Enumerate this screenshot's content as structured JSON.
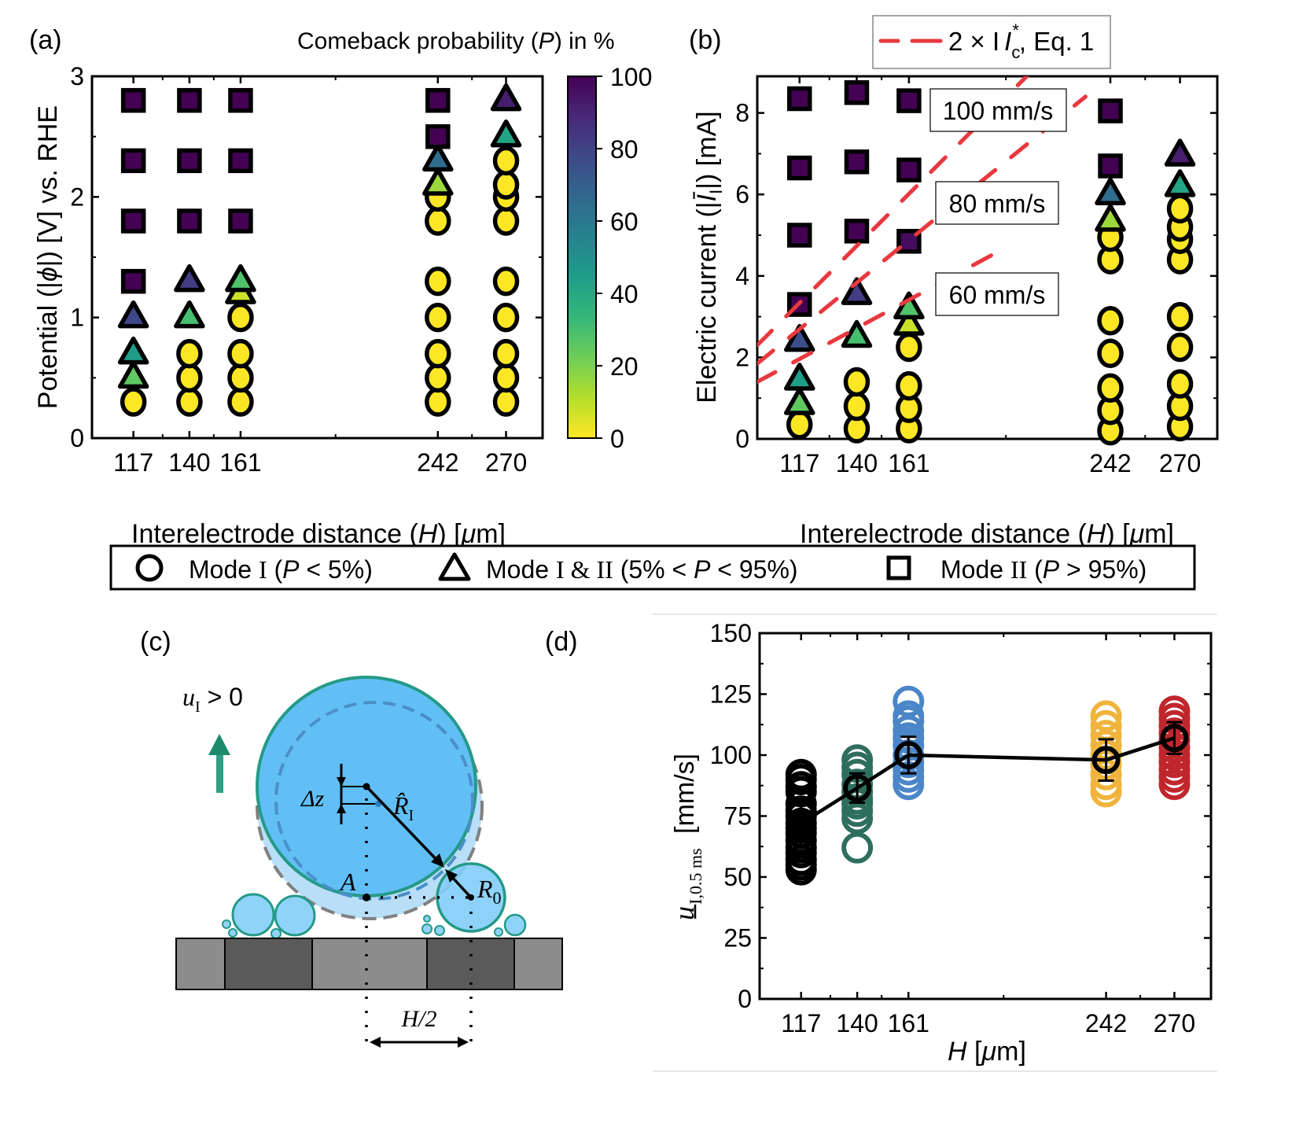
{
  "figure": {
    "panel_labels": {
      "a": "(a)",
      "b": "(b)",
      "c": "(c)",
      "d": "(d)"
    },
    "colors": {
      "viridis": [
        "#fde725",
        "#b5de2b",
        "#6ece58",
        "#35b779",
        "#1f9e89",
        "#26828e",
        "#31688e",
        "#3e4989",
        "#482878",
        "#440154"
      ],
      "marker_edge": "#000000",
      "dashed_line": "#e8393f"
    }
  },
  "chart_data": [
    {
      "id": "a",
      "type": "scatter",
      "title": "",
      "colorbar": {
        "label": "Comeback probability (P) in %",
        "range": [
          0,
          100
        ],
        "ticks": [
          "0",
          "20",
          "40",
          "60",
          "80",
          "100"
        ],
        "colormap": "viridis"
      },
      "xlabel": "Interelectrode distance (H) [μm]",
      "ylabel": "Potential (|φ|) [V] vs. RHE",
      "xlim": [
        100,
        285
      ],
      "ylim": [
        0,
        3
      ],
      "xticks": [
        117,
        140,
        161,
        242,
        270
      ],
      "xtick_labels": [
        "117",
        "140",
        "161",
        "242",
        "270"
      ],
      "yticks": [
        0,
        1,
        2,
        3
      ],
      "ytick_labels": [
        "0",
        "1",
        "2",
        "3"
      ],
      "points": [
        {
          "x": 117,
          "y": 2.8,
          "marker": "square",
          "P": 100
        },
        {
          "x": 117,
          "y": 2.3,
          "marker": "square",
          "P": 100
        },
        {
          "x": 117,
          "y": 1.8,
          "marker": "square",
          "P": 100
        },
        {
          "x": 117,
          "y": 1.3,
          "marker": "square",
          "P": 100
        },
        {
          "x": 117,
          "y": 1.0,
          "marker": "triangle",
          "P": 78
        },
        {
          "x": 117,
          "y": 0.7,
          "marker": "triangle",
          "P": 45
        },
        {
          "x": 117,
          "y": 0.5,
          "marker": "triangle",
          "P": 25
        },
        {
          "x": 117,
          "y": 0.3,
          "marker": "circle",
          "P": 0
        },
        {
          "x": 140,
          "y": 2.8,
          "marker": "square",
          "P": 100
        },
        {
          "x": 140,
          "y": 2.3,
          "marker": "square",
          "P": 100
        },
        {
          "x": 140,
          "y": 1.8,
          "marker": "square",
          "P": 100
        },
        {
          "x": 140,
          "y": 1.3,
          "marker": "triangle",
          "P": 82
        },
        {
          "x": 140,
          "y": 1.0,
          "marker": "triangle",
          "P": 30
        },
        {
          "x": 140,
          "y": 0.7,
          "marker": "circle",
          "P": 0
        },
        {
          "x": 140,
          "y": 0.5,
          "marker": "circle",
          "P": 0
        },
        {
          "x": 140,
          "y": 0.3,
          "marker": "circle",
          "P": 0
        },
        {
          "x": 161,
          "y": 2.8,
          "marker": "square",
          "P": 100
        },
        {
          "x": 161,
          "y": 2.3,
          "marker": "square",
          "P": 100
        },
        {
          "x": 161,
          "y": 1.8,
          "marker": "square",
          "P": 100
        },
        {
          "x": 161,
          "y": 1.3,
          "marker": "triangle",
          "P": 28
        },
        {
          "x": 161,
          "y": 1.2,
          "marker": "triangle",
          "P": 8
        },
        {
          "x": 161,
          "y": 1.0,
          "marker": "circle",
          "P": 0
        },
        {
          "x": 161,
          "y": 0.7,
          "marker": "circle",
          "P": 0
        },
        {
          "x": 161,
          "y": 0.5,
          "marker": "circle",
          "P": 0
        },
        {
          "x": 161,
          "y": 0.3,
          "marker": "circle",
          "P": 0
        },
        {
          "x": 242,
          "y": 2.8,
          "marker": "square",
          "P": 100
        },
        {
          "x": 242,
          "y": 2.5,
          "marker": "square",
          "P": 100
        },
        {
          "x": 242,
          "y": 2.3,
          "marker": "triangle",
          "P": 65
        },
        {
          "x": 242,
          "y": 2.1,
          "marker": "triangle",
          "P": 15
        },
        {
          "x": 242,
          "y": 2.0,
          "marker": "circle",
          "P": 0
        },
        {
          "x": 242,
          "y": 1.8,
          "marker": "circle",
          "P": 0
        },
        {
          "x": 242,
          "y": 1.3,
          "marker": "circle",
          "P": 0
        },
        {
          "x": 242,
          "y": 1.0,
          "marker": "circle",
          "P": 0
        },
        {
          "x": 242,
          "y": 0.7,
          "marker": "circle",
          "P": 0
        },
        {
          "x": 242,
          "y": 0.5,
          "marker": "circle",
          "P": 0
        },
        {
          "x": 242,
          "y": 0.3,
          "marker": "circle",
          "P": 0
        },
        {
          "x": 270,
          "y": 2.8,
          "marker": "triangle",
          "P": 92
        },
        {
          "x": 270,
          "y": 2.5,
          "marker": "triangle",
          "P": 42
        },
        {
          "x": 270,
          "y": 2.3,
          "marker": "circle",
          "P": 0
        },
        {
          "x": 270,
          "y": 2.1,
          "marker": "circle",
          "P": 0
        },
        {
          "x": 270,
          "y": 2.0,
          "marker": "circle",
          "P": 0
        },
        {
          "x": 270,
          "y": 1.8,
          "marker": "circle",
          "P": 0
        },
        {
          "x": 270,
          "y": 1.3,
          "marker": "circle",
          "P": 0
        },
        {
          "x": 270,
          "y": 1.0,
          "marker": "circle",
          "P": 0
        },
        {
          "x": 270,
          "y": 0.7,
          "marker": "circle",
          "P": 0
        },
        {
          "x": 270,
          "y": 0.5,
          "marker": "circle",
          "P": 0
        },
        {
          "x": 270,
          "y": 0.3,
          "marker": "circle",
          "P": 0
        }
      ]
    },
    {
      "id": "b",
      "type": "scatter",
      "xlabel": "Interelectrode distance (H) [μm]",
      "ylabel": "Electric current (|Ī_I|) [mA]",
      "xlim": [
        100,
        285
      ],
      "ylim": [
        0,
        8.9
      ],
      "xticks": [
        117,
        140,
        161,
        242,
        270
      ],
      "xtick_labels": [
        "117",
        "140",
        "161",
        "242",
        "270"
      ],
      "yticks": [
        0,
        2,
        4,
        6,
        8
      ],
      "ytick_labels": [
        "0",
        "2",
        "4",
        "6",
        "8"
      ],
      "legend": {
        "label_prefix": "2 × I",
        "label_sub": "c",
        "label_sup": "*",
        "label_suffix": ", Eq. 1",
        "position": "top-center"
      },
      "reference_lines": [
        {
          "label": "100 mm/s",
          "x": [
            100,
            210
          ],
          "y": [
            2.3,
            9.0
          ]
        },
        {
          "label": "80 mm/s",
          "x": [
            100,
            232
          ],
          "y": [
            1.85,
            8.4
          ]
        },
        {
          "label": "60 mm/s",
          "x": [
            100,
            197
          ],
          "y": [
            1.4,
            4.6
          ]
        }
      ],
      "annotations": [
        "100 mm/s",
        "80 mm/s",
        "60 mm/s"
      ],
      "points": [
        {
          "x": 117,
          "y": 8.35,
          "marker": "square",
          "P": 100
        },
        {
          "x": 117,
          "y": 6.65,
          "marker": "square",
          "P": 100
        },
        {
          "x": 117,
          "y": 5.0,
          "marker": "square",
          "P": 100
        },
        {
          "x": 117,
          "y": 3.3,
          "marker": "square",
          "P": 100
        },
        {
          "x": 117,
          "y": 2.4,
          "marker": "triangle",
          "P": 76
        },
        {
          "x": 117,
          "y": 1.45,
          "marker": "triangle",
          "P": 45
        },
        {
          "x": 117,
          "y": 0.85,
          "marker": "triangle",
          "P": 25
        },
        {
          "x": 117,
          "y": 0.35,
          "marker": "circle",
          "P": 0
        },
        {
          "x": 140,
          "y": 8.5,
          "marker": "square",
          "P": 100
        },
        {
          "x": 140,
          "y": 6.8,
          "marker": "square",
          "P": 100
        },
        {
          "x": 140,
          "y": 5.1,
          "marker": "square",
          "P": 100
        },
        {
          "x": 140,
          "y": 3.55,
          "marker": "triangle",
          "P": 82
        },
        {
          "x": 140,
          "y": 2.5,
          "marker": "triangle",
          "P": 30
        },
        {
          "x": 140,
          "y": 1.4,
          "marker": "circle",
          "P": 0
        },
        {
          "x": 140,
          "y": 0.8,
          "marker": "circle",
          "P": 0
        },
        {
          "x": 140,
          "y": 0.25,
          "marker": "circle",
          "P": 0
        },
        {
          "x": 161,
          "y": 8.3,
          "marker": "square",
          "P": 100
        },
        {
          "x": 161,
          "y": 6.6,
          "marker": "square",
          "P": 100
        },
        {
          "x": 161,
          "y": 4.85,
          "marker": "square",
          "P": 97
        },
        {
          "x": 161,
          "y": 3.2,
          "marker": "triangle",
          "P": 28
        },
        {
          "x": 161,
          "y": 2.8,
          "marker": "triangle",
          "P": 8
        },
        {
          "x": 161,
          "y": 2.25,
          "marker": "circle",
          "P": 0
        },
        {
          "x": 161,
          "y": 1.3,
          "marker": "circle",
          "P": 0
        },
        {
          "x": 161,
          "y": 0.75,
          "marker": "circle",
          "P": 0
        },
        {
          "x": 161,
          "y": 0.25,
          "marker": "circle",
          "P": 0
        },
        {
          "x": 242,
          "y": 8.05,
          "marker": "square",
          "P": 100
        },
        {
          "x": 242,
          "y": 6.7,
          "marker": "square",
          "P": 100
        },
        {
          "x": 242,
          "y": 6.0,
          "marker": "triangle",
          "P": 65
        },
        {
          "x": 242,
          "y": 5.35,
          "marker": "triangle",
          "P": 15
        },
        {
          "x": 242,
          "y": 4.95,
          "marker": "circle",
          "P": 0
        },
        {
          "x": 242,
          "y": 4.4,
          "marker": "circle",
          "P": 0
        },
        {
          "x": 242,
          "y": 2.9,
          "marker": "circle",
          "P": 0
        },
        {
          "x": 242,
          "y": 2.1,
          "marker": "circle",
          "P": 0
        },
        {
          "x": 242,
          "y": 1.25,
          "marker": "circle",
          "P": 0
        },
        {
          "x": 242,
          "y": 0.7,
          "marker": "circle",
          "P": 0
        },
        {
          "x": 242,
          "y": 0.2,
          "marker": "circle",
          "P": 0
        },
        {
          "x": 270,
          "y": 6.95,
          "marker": "triangle",
          "P": 92
        },
        {
          "x": 270,
          "y": 6.2,
          "marker": "triangle",
          "P": 42
        },
        {
          "x": 270,
          "y": 5.65,
          "marker": "circle",
          "P": 0
        },
        {
          "x": 270,
          "y": 5.2,
          "marker": "circle",
          "P": 0
        },
        {
          "x": 270,
          "y": 4.9,
          "marker": "circle",
          "P": 0
        },
        {
          "x": 270,
          "y": 4.4,
          "marker": "circle",
          "P": 0
        },
        {
          "x": 270,
          "y": 3.0,
          "marker": "circle",
          "P": 0
        },
        {
          "x": 270,
          "y": 2.25,
          "marker": "circle",
          "P": 0
        },
        {
          "x": 270,
          "y": 1.35,
          "marker": "circle",
          "P": 0
        },
        {
          "x": 270,
          "y": 0.8,
          "marker": "circle",
          "P": 0
        },
        {
          "x": 270,
          "y": 0.3,
          "marker": "circle",
          "P": 0
        }
      ]
    },
    {
      "id": "d",
      "type": "scatter",
      "xlabel": "H [μm]",
      "ylabel": "ū_I,0.5 ms [mm/s]",
      "xlim": [
        100,
        285
      ],
      "ylim": [
        0,
        150
      ],
      "xticks": [
        117,
        140,
        161,
        242,
        270
      ],
      "xtick_labels": [
        "117",
        "140",
        "161",
        "242",
        "270"
      ],
      "yticks": [
        0,
        25,
        50,
        75,
        100,
        125,
        150
      ],
      "ytick_labels": [
        "0",
        "25",
        "50",
        "75",
        "100",
        "125",
        "150"
      ],
      "series": [
        {
          "name": "H=117",
          "x": 117,
          "color": "#000000",
          "values": [
            92,
            90,
            87,
            85,
            80,
            77,
            75,
            72,
            70,
            68,
            65,
            62,
            60,
            57,
            55,
            53
          ]
        },
        {
          "name": "H=140",
          "x": 140,
          "color": "#2e6e5d",
          "values": [
            98,
            95,
            92,
            88,
            85,
            82,
            80,
            77,
            74,
            62
          ]
        },
        {
          "name": "H=161",
          "x": 161,
          "color": "#4a86c8",
          "values": [
            122,
            116,
            114,
            110,
            107,
            104,
            100,
            97,
            94,
            91,
            88
          ]
        },
        {
          "name": "H=242",
          "x": 242,
          "color": "#f0b43c",
          "values": [
            116,
            112,
            108,
            104,
            100,
            96,
            92,
            88,
            85
          ]
        },
        {
          "name": "H=270",
          "x": 270,
          "color": "#c0272d",
          "values": [
            118,
            115,
            112,
            109,
            106,
            103,
            100,
            97,
            94,
            91,
            88
          ]
        }
      ],
      "mean": {
        "x": [
          117,
          140,
          161,
          242,
          270
        ],
        "y": [
          72,
          86.5,
          100,
          98,
          107
        ],
        "err": [
          9,
          6,
          7.5,
          8.5,
          6.5
        ],
        "color": "#000000"
      }
    }
  ],
  "legend_shared": {
    "items": [
      {
        "marker": "circle",
        "label_pre": "Mode ",
        "roman": "I",
        "label_post": " (",
        "italic": "P",
        "range": " < 5%)"
      },
      {
        "marker": "triangle",
        "label_pre": "Mode ",
        "roman": "I & II",
        "label_post": " (5% < ",
        "italic": "P",
        "range": " < 95%)"
      },
      {
        "marker": "square",
        "label_pre": "Mode ",
        "roman": "II",
        "label_post": " (",
        "italic": "P",
        "range": " > 95%)"
      }
    ]
  },
  "diagram_c": {
    "velocity_label": "u",
    "velocity_sub": "I",
    "velocity_rest": " > 0",
    "delta_z": "Δz",
    "r_hat": "R̂",
    "r_hat_sub": "I",
    "point_a": "A",
    "r0": "R",
    "r0_sub": "0",
    "h_half": "H/2",
    "colors": {
      "bubble_fill": "#62bff6",
      "bubble_stroke": "#259a87",
      "arrow": "#1e8a6c",
      "electrode_dark": "#5a5a5a",
      "electrode_light": "#8c8c8c",
      "dash_grey": "#808080",
      "dash_blue": "#4a8fc8"
    }
  }
}
